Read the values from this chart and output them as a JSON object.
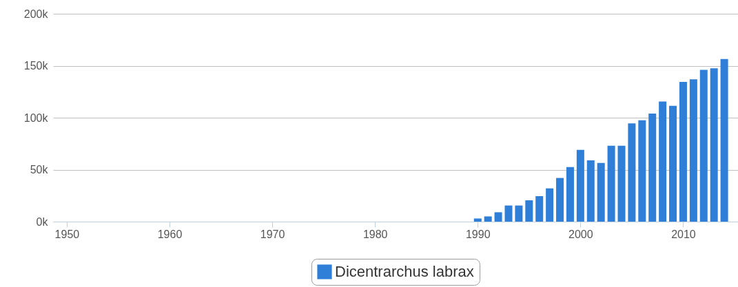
{
  "chart_data": {
    "type": "bar",
    "x": [
      1990,
      1991,
      1992,
      1993,
      1994,
      1995,
      1996,
      1997,
      1998,
      1999,
      2000,
      2001,
      2002,
      2003,
      2004,
      2005,
      2006,
      2007,
      2008,
      2009,
      2010,
      2011,
      2012,
      2013,
      2014
    ],
    "series": [
      {
        "name": "Dicentrarchus labrax",
        "color": "#2f7ed8",
        "values": [
          3000,
          5000,
          9000,
          15500,
          15500,
          20500,
          24500,
          32000,
          42000,
          52500,
          69000,
          59000,
          56500,
          73000,
          73000,
          94500,
          97500,
          104000,
          115500,
          111500,
          134500,
          137000,
          146000,
          147500,
          156500
        ]
      }
    ],
    "xlim": [
      1949,
      2015
    ],
    "xticks": [
      1950,
      1960,
      1970,
      1980,
      1990,
      2000,
      2010
    ],
    "ylim": [
      0,
      200000
    ],
    "yticks": [
      {
        "value": 0,
        "label": "0k"
      },
      {
        "value": 50000,
        "label": "50k"
      },
      {
        "value": 100000,
        "label": "100k"
      },
      {
        "value": 150000,
        "label": "150k"
      },
      {
        "value": 200000,
        "label": "200k"
      }
    ],
    "grid": "y",
    "legend": "bottom"
  }
}
